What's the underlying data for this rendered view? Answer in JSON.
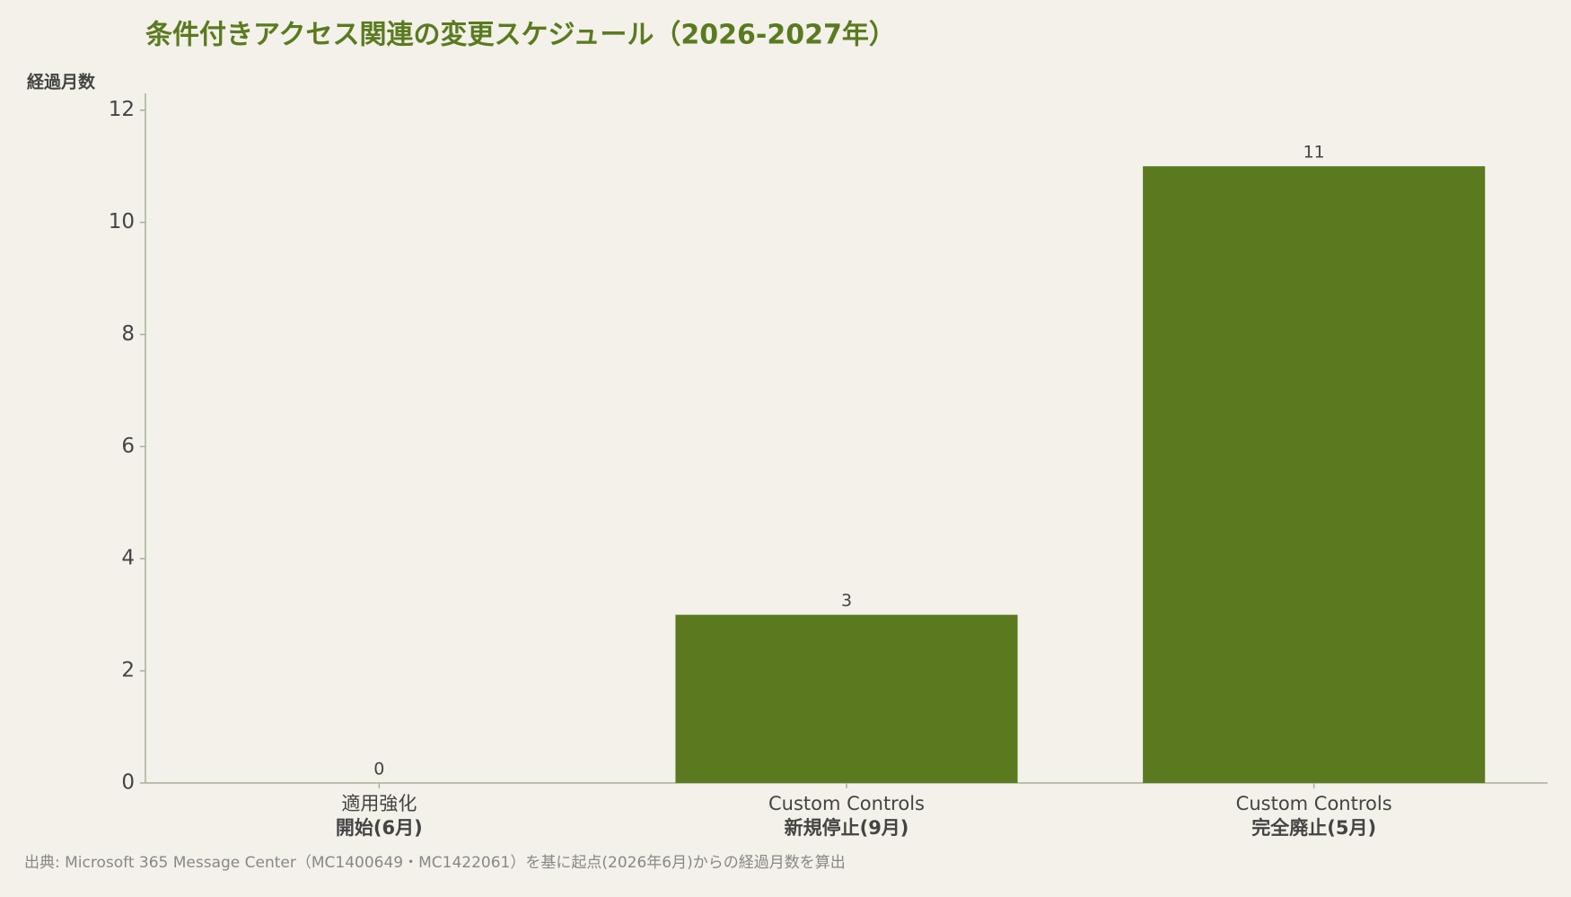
{
  "chart_data": {
    "type": "bar",
    "title": "条件付きアクセス関連の変更スケジュール（2026-2027年）",
    "y_label": "経過月数",
    "categories": [
      [
        "適用強化",
        "開始(6月)"
      ],
      [
        "Custom Controls",
        "新規停止(9月)"
      ],
      [
        "Custom Controls",
        "完全廃止(5月)"
      ]
    ],
    "values": [
      0,
      3,
      11
    ],
    "color": "#5b7a1f",
    "ylim": [
      0,
      12.3
    ],
    "yticks": [
      0,
      2,
      4,
      6,
      8,
      10,
      12
    ],
    "grid": false,
    "source": "出典: Microsoft 365 Message Center（MC1400649・MC1422061）を基に起点(2026年6月)からの経過月数を算出"
  }
}
